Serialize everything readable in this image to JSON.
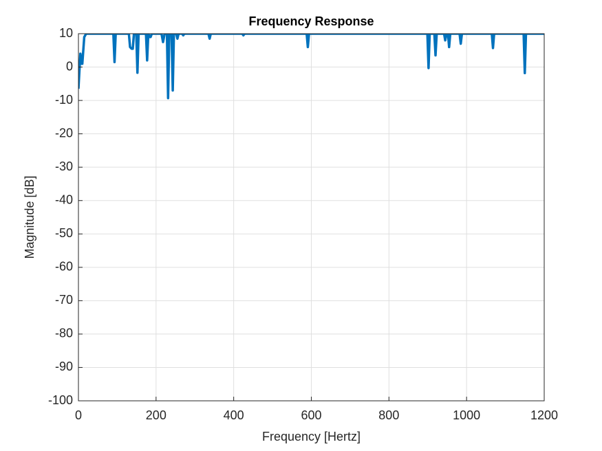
{
  "chart_data": {
    "type": "line",
    "title": "Frequency Response",
    "x_label": "Frequency [Hertz]",
    "y_label": "Magnitude [dB]",
    "x": [
      0,
      5,
      8,
      10,
      15,
      20,
      90,
      93,
      96,
      130,
      133,
      137,
      140,
      143,
      149,
      152,
      155,
      174,
      177,
      180,
      184,
      186,
      189,
      214,
      218,
      222,
      228,
      231,
      234,
      240,
      243,
      246,
      252,
      255,
      258,
      267,
      270,
      273,
      335,
      338,
      341,
      422,
      425,
      428,
      588,
      591,
      594,
      899,
      902,
      905,
      917,
      920,
      923,
      942,
      945,
      948,
      952,
      955,
      958,
      982,
      985,
      988,
      1065,
      1068,
      1071,
      1147,
      1150,
      1153,
      1200
    ],
    "series": [
      {
        "color": "#0072bd",
        "values": [
          -6.5,
          4,
          1,
          1,
          9,
          10,
          10,
          1.5,
          10,
          10,
          6,
          5.5,
          5.5,
          10,
          10,
          -1.7,
          10,
          10,
          2,
          10,
          9,
          9,
          10,
          10,
          7.5,
          10,
          10,
          -9.3,
          10,
          10,
          -7,
          10,
          10,
          8.5,
          10,
          10,
          9.5,
          10,
          10,
          8.5,
          10,
          10,
          9.5,
          10,
          10,
          6,
          10,
          10,
          -0.3,
          10,
          10,
          3.5,
          10,
          10,
          8,
          10,
          10,
          6,
          10,
          10,
          7,
          10,
          10,
          5.7,
          10,
          10,
          -1.8,
          10,
          10
        ]
      }
    ],
    "xlim": [
      0,
      1200
    ],
    "ylim": [
      -100,
      10
    ],
    "xticks": [
      0,
      200,
      400,
      600,
      800,
      1000,
      1200
    ],
    "yticks": [
      -100,
      -90,
      -80,
      -70,
      -60,
      -50,
      -40,
      -30,
      -20,
      -10,
      0,
      10
    ],
    "grid": true
  }
}
